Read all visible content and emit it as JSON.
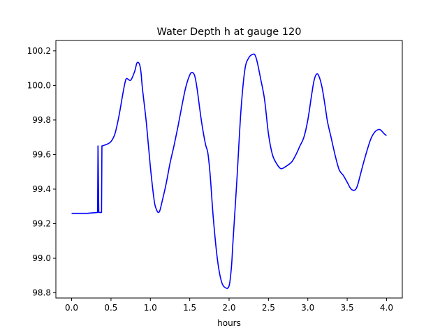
{
  "chart_data": {
    "type": "line",
    "title": "Water Depth h at gauge 120",
    "xlabel": "hours",
    "ylabel": "",
    "xlim": [
      -0.2,
      4.2
    ],
    "ylim": [
      98.77,
      100.26
    ],
    "xticks": [
      0.0,
      0.5,
      1.0,
      1.5,
      2.0,
      2.5,
      3.0,
      3.5,
      4.0
    ],
    "xtick_labels": [
      "0.0",
      "0.5",
      "1.0",
      "1.5",
      "2.0",
      "2.5",
      "3.0",
      "3.5",
      "4.0"
    ],
    "yticks": [
      98.8,
      99.0,
      99.2,
      99.4,
      99.6,
      99.8,
      100.0,
      100.2
    ],
    "ytick_labels": [
      "98.8",
      "99.0",
      "99.2",
      "99.4",
      "99.6",
      "99.8",
      "100.0",
      "100.2"
    ],
    "grid": false,
    "color": "#0000ff",
    "series": [
      {
        "name": "",
        "x": [
          0.0,
          0.2,
          0.33,
          0.335,
          0.345,
          0.38,
          0.385,
          0.39,
          0.45,
          0.5,
          0.55,
          0.6,
          0.65,
          0.68,
          0.7,
          0.75,
          0.8,
          0.83,
          0.86,
          0.88,
          0.9,
          0.95,
          1.0,
          1.05,
          1.08,
          1.1,
          1.12,
          1.15,
          1.2,
          1.25,
          1.3,
          1.35,
          1.4,
          1.45,
          1.5,
          1.53,
          1.56,
          1.58,
          1.6,
          1.65,
          1.7,
          1.73,
          1.76,
          1.8,
          1.85,
          1.9,
          1.95,
          2.0,
          2.03,
          2.05,
          2.1,
          2.15,
          2.2,
          2.25,
          2.3,
          2.33,
          2.36,
          2.4,
          2.45,
          2.5,
          2.55,
          2.6,
          2.65,
          2.68,
          2.7,
          2.75,
          2.8,
          2.85,
          2.9,
          2.95,
          3.0,
          3.05,
          3.08,
          3.11,
          3.14,
          3.18,
          3.22,
          3.25,
          3.3,
          3.35,
          3.4,
          3.45,
          3.5,
          3.55,
          3.6,
          3.63,
          3.66,
          3.7,
          3.75,
          3.8,
          3.85,
          3.9,
          3.93,
          3.97,
          4.0
        ],
        "values": [
          99.26,
          99.26,
          99.265,
          99.65,
          99.265,
          99.265,
          99.65,
          99.65,
          99.66,
          99.675,
          99.72,
          99.82,
          99.95,
          100.02,
          100.04,
          100.03,
          100.08,
          100.13,
          100.125,
          100.08,
          99.98,
          99.78,
          99.53,
          99.33,
          99.28,
          99.265,
          99.275,
          99.33,
          99.43,
          99.55,
          99.65,
          99.76,
          99.88,
          99.99,
          100.06,
          100.075,
          100.06,
          100.02,
          99.96,
          99.79,
          99.66,
          99.61,
          99.48,
          99.23,
          99.0,
          98.87,
          98.83,
          98.84,
          98.95,
          99.1,
          99.46,
          99.85,
          100.09,
          100.16,
          100.18,
          100.175,
          100.13,
          100.04,
          99.92,
          99.72,
          99.6,
          99.55,
          99.52,
          99.52,
          99.525,
          99.54,
          99.56,
          99.6,
          99.65,
          99.7,
          99.8,
          99.95,
          100.03,
          100.065,
          100.055,
          99.99,
          99.88,
          99.79,
          99.69,
          99.59,
          99.51,
          99.48,
          99.44,
          99.4,
          99.395,
          99.42,
          99.47,
          99.54,
          99.62,
          99.69,
          99.73,
          99.745,
          99.74,
          99.72,
          99.71
        ]
      }
    ]
  }
}
